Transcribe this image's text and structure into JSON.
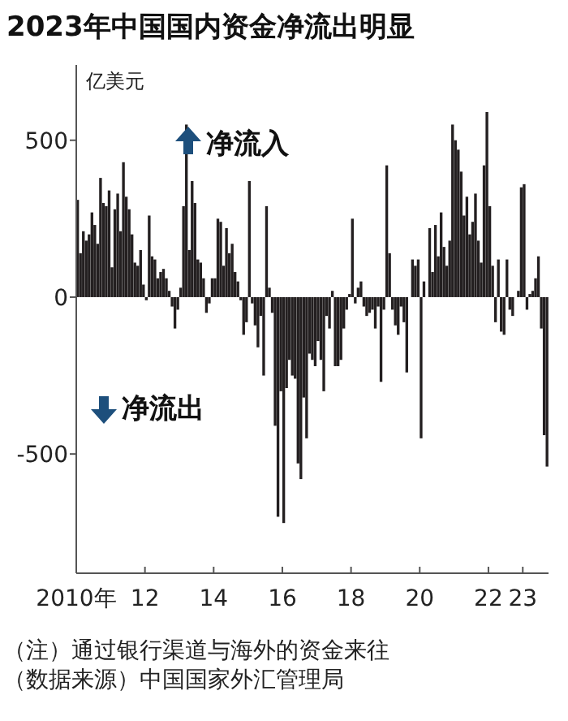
{
  "chart_data": {
    "type": "bar",
    "title": "2023年中国国内资金净流出明显",
    "ylabel": "亿美元",
    "annotations": [
      "净流入",
      "净流出",
      "（注）通过银行渠道与海外的资金来往",
      "（数据来源）中国国家外汇管理局"
    ],
    "x": [
      "2010-01",
      "2010-02",
      "2010-03",
      "2010-04",
      "2010-05",
      "2010-06",
      "2010-07",
      "2010-08",
      "2010-09",
      "2010-10",
      "2010-11",
      "2010-12",
      "2011-01",
      "2011-02",
      "2011-03",
      "2011-04",
      "2011-05",
      "2011-06",
      "2011-07",
      "2011-08",
      "2011-09",
      "2011-10",
      "2011-11",
      "2011-12",
      "2012-01",
      "2012-02",
      "2012-03",
      "2012-04",
      "2012-05",
      "2012-06",
      "2012-07",
      "2012-08",
      "2012-09",
      "2012-10",
      "2012-11",
      "2012-12",
      "2013-01",
      "2013-02",
      "2013-03",
      "2013-04",
      "2013-05",
      "2013-06",
      "2013-07",
      "2013-08",
      "2013-09",
      "2013-10",
      "2013-11",
      "2013-12",
      "2014-01",
      "2014-02",
      "2014-03",
      "2014-04",
      "2014-05",
      "2014-06",
      "2014-07",
      "2014-08",
      "2014-09",
      "2014-10",
      "2014-11",
      "2014-12",
      "2015-01",
      "2015-02",
      "2015-03",
      "2015-04",
      "2015-05",
      "2015-06",
      "2015-07",
      "2015-08",
      "2015-09",
      "2015-10",
      "2015-11",
      "2015-12",
      "2016-01",
      "2016-02",
      "2016-03",
      "2016-04",
      "2016-05",
      "2016-06",
      "2016-07",
      "2016-08",
      "2016-09",
      "2016-10",
      "2016-11",
      "2016-12",
      "2017-01",
      "2017-02",
      "2017-03",
      "2017-04",
      "2017-05",
      "2017-06",
      "2017-07",
      "2017-08",
      "2017-09",
      "2017-10",
      "2017-11",
      "2017-12",
      "2018-01",
      "2018-02",
      "2018-03",
      "2018-04",
      "2018-05",
      "2018-06",
      "2018-07",
      "2018-08",
      "2018-09",
      "2018-10",
      "2018-11",
      "2018-12",
      "2019-01",
      "2019-02",
      "2019-03",
      "2019-04",
      "2019-05",
      "2019-06",
      "2019-07",
      "2019-08",
      "2019-09",
      "2019-10",
      "2019-11",
      "2019-12",
      "2020-01",
      "2020-02",
      "2020-03",
      "2020-04",
      "2020-05",
      "2020-06",
      "2020-07",
      "2020-08",
      "2020-09",
      "2020-10",
      "2020-11",
      "2020-12",
      "2021-01",
      "2021-02",
      "2021-03",
      "2021-04",
      "2021-05",
      "2021-06",
      "2021-07",
      "2021-08",
      "2021-09",
      "2021-10",
      "2021-11",
      "2021-12",
      "2022-01",
      "2022-02",
      "2022-03",
      "2022-04",
      "2022-05",
      "2022-06",
      "2022-07",
      "2022-08",
      "2022-09",
      "2022-10",
      "2022-11",
      "2022-12",
      "2023-01",
      "2023-02",
      "2023-03",
      "2023-04",
      "2023-05",
      "2023-06",
      "2023-07",
      "2023-08",
      "2023-09"
    ],
    "values": [
      310,
      140,
      210,
      180,
      200,
      270,
      230,
      170,
      380,
      300,
      290,
      340,
      95,
      280,
      330,
      210,
      430,
      320,
      280,
      200,
      110,
      100,
      150,
      40,
      -10,
      260,
      130,
      120,
      60,
      80,
      90,
      60,
      20,
      -30,
      -100,
      -40,
      30,
      290,
      550,
      150,
      370,
      300,
      120,
      110,
      60,
      -50,
      -20,
      60,
      60,
      250,
      240,
      100,
      220,
      140,
      170,
      80,
      50,
      -10,
      -120,
      -80,
      370,
      -20,
      -90,
      -160,
      -60,
      -250,
      290,
      30,
      -50,
      -410,
      -700,
      -300,
      -720,
      -290,
      -200,
      -250,
      -260,
      -530,
      -580,
      -320,
      -450,
      -180,
      -200,
      -220,
      -140,
      -200,
      -300,
      -60,
      -100,
      20,
      -220,
      -220,
      -200,
      -100,
      -40,
      10,
      250,
      -20,
      30,
      50,
      -30,
      -60,
      -50,
      -40,
      -100,
      -30,
      -270,
      -40,
      420,
      140,
      -40,
      -90,
      -120,
      -30,
      -80,
      -240,
      0,
      120,
      100,
      120,
      -450,
      50,
      0,
      220,
      80,
      230,
      130,
      270,
      160,
      100,
      180,
      550,
      500,
      470,
      400,
      260,
      320,
      200,
      240,
      330,
      180,
      110,
      420,
      590,
      290,
      100,
      -80,
      120,
      -110,
      -120,
      120,
      -40,
      -60,
      0,
      20,
      350,
      360,
      -40,
      10,
      20,
      60,
      130,
      -100,
      -440,
      -540
    ],
    "color": "#231f20",
    "xlim": [
      "2010-01",
      "2023-10"
    ],
    "xticks": [
      {
        "value": "2010",
        "label": "2010年"
      },
      {
        "value": "2012",
        "label": "12"
      },
      {
        "value": "2014",
        "label": "14"
      },
      {
        "value": "2016",
        "label": "16"
      },
      {
        "value": "2018",
        "label": "18"
      },
      {
        "value": "2020",
        "label": "20"
      },
      {
        "value": "2022",
        "label": "22"
      },
      {
        "value": "2023",
        "label": "23"
      }
    ],
    "ylim": [
      -880,
      740
    ],
    "yticks": [
      -500,
      0,
      500
    ],
    "grid": false
  }
}
